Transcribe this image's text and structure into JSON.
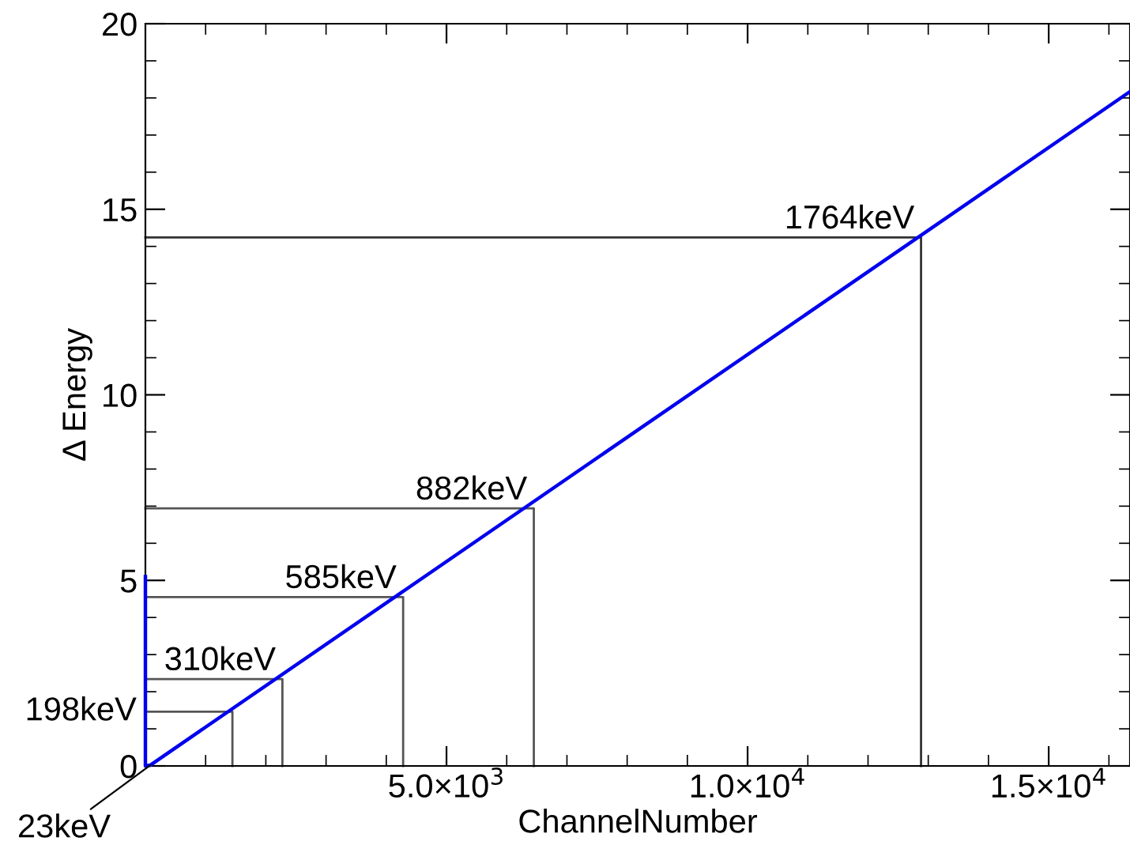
{
  "chart_data": {
    "type": "line",
    "xlabel": "ChannelNumber",
    "ylabel": "Δ Energy",
    "xlim": [
      0,
      16350
    ],
    "ylim": [
      0,
      20
    ],
    "xticks": [
      {
        "value": 5000,
        "label": "5.0×10$^{3}$"
      },
      {
        "value": 10000,
        "label": "1.0×10$^{4}$"
      },
      {
        "value": 15000,
        "label": "1.5×10$^{4}$"
      }
    ],
    "yticks": [
      0,
      5,
      10,
      15,
      20
    ],
    "grid": false,
    "legend": false,
    "marker": "none",
    "line_style": "solid",
    "series": [
      {
        "color": "#0000ee",
        "x": [
          0,
          0,
          80,
          16350
        ],
        "values": [
          5.1,
          0,
          0.02,
          18.17
        ]
      },
      {
        "color": "#555555",
        "x": [
          0,
          1445,
          1445
        ],
        "values": [
          1.46,
          1.46,
          0
        ]
      },
      {
        "color": "#555555",
        "x": [
          0,
          2275,
          2275
        ],
        "values": [
          2.34,
          2.34,
          0
        ]
      },
      {
        "color": "#555555",
        "x": [
          0,
          4280,
          4280
        ],
        "values": [
          4.55,
          4.55,
          0
        ]
      },
      {
        "color": "#555555",
        "x": [
          0,
          6450,
          6450
        ],
        "values": [
          6.94,
          6.94,
          0
        ]
      },
      {
        "color": "#333333",
        "x": [
          0,
          12880,
          12880
        ],
        "values": [
          14.24,
          14.24,
          0
        ]
      }
    ],
    "annotations": [
      {
        "text": "23keV",
        "x": 80,
        "y": 0.02
      },
      {
        "text": "198keV",
        "x": 0,
        "y": 1.46
      },
      {
        "text": "310keV",
        "x": 2275,
        "y": 2.34
      },
      {
        "text": "585keV",
        "x": 4280,
        "y": 4.55
      },
      {
        "text": "882keV",
        "x": 6450,
        "y": 6.94
      },
      {
        "text": "1764keV",
        "x": 12880,
        "y": 14.24
      }
    ]
  }
}
